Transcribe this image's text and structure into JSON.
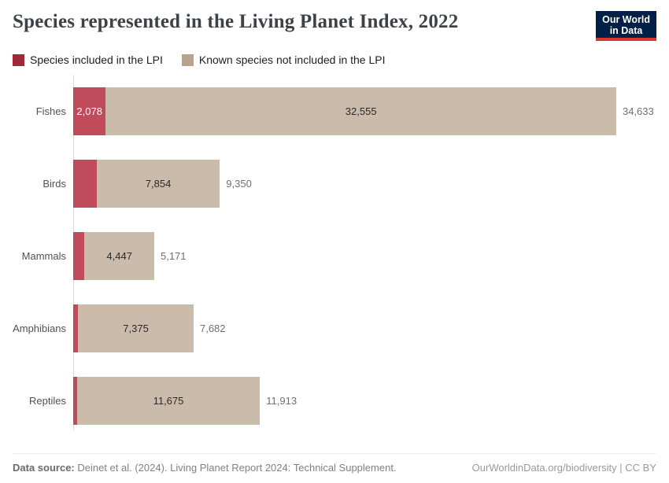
{
  "header": {
    "title": "Species represented in the Living Planet Index, 2022",
    "logo": {
      "line1": "Our World",
      "line2": "in Data",
      "bg_color": "#002147",
      "accent_color": "#dc352e"
    }
  },
  "legend": {
    "items": [
      {
        "label": "Species included in the LPI",
        "swatch_color": "#a0283b"
      },
      {
        "label": "Known species not included in the LPI",
        "swatch_color": "#b8a48b"
      }
    ]
  },
  "chart_data": {
    "type": "bar",
    "orientation": "horizontal",
    "stacked": true,
    "grid": false,
    "legend_position": "top",
    "categories": [
      "Fishes",
      "Birds",
      "Mammals",
      "Amphibians",
      "Reptiles"
    ],
    "series": [
      {
        "name": "Species included in the LPI",
        "color": "#bf4b5b",
        "values": [
          2078,
          1496,
          724,
          307,
          238
        ],
        "value_labels": [
          "2,078",
          "",
          "",
          "",
          ""
        ]
      },
      {
        "name": "Known species not included in the LPI",
        "color": "#cbbbab",
        "values": [
          32555,
          7854,
          4447,
          7375,
          11675
        ],
        "value_labels": [
          "32,555",
          "7,854",
          "4,447",
          "7,375",
          "11,675"
        ]
      }
    ],
    "totals": {
      "values": [
        34633,
        9350,
        5171,
        7682,
        11913
      ],
      "labels": [
        "34,633",
        "9,350",
        "5,171",
        "7,682",
        "11,913"
      ]
    },
    "xlim": [
      0,
      34633
    ],
    "axis_color": "#dcdcdc"
  },
  "footer": {
    "source_label": "Data source:",
    "source_text": " Deinet et al. (2024). Living Planet Report 2024: Technical Supplement.",
    "credit": "OurWorldinData.org/biodiversity | CC BY"
  }
}
